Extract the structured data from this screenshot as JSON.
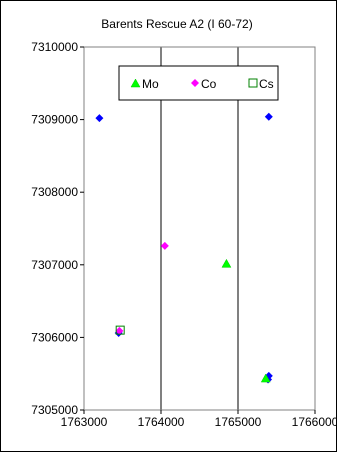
{
  "chart_data": {
    "type": "scatter",
    "title": "Barents Rescue A2 (I 60-72)",
    "xlabel": "",
    "ylabel": "",
    "xlim": [
      1763000,
      1766000
    ],
    "ylim": [
      7305000,
      7310000
    ],
    "x_ticks": [
      1763000,
      1764000,
      1765000,
      1766000
    ],
    "y_ticks": [
      7305000,
      7306000,
      7307000,
      7308000,
      7309000,
      7310000
    ],
    "x_tick_labels": [
      "1763000",
      "1764000",
      "1765000",
      "1766000"
    ],
    "y_tick_labels": [
      "7305000",
      "7306000",
      "7307000",
      "7308000",
      "7309000",
      "7310000"
    ],
    "grid": "vertical",
    "legend_position": "top-center",
    "unlabeled_points": {
      "color": "#0000ff",
      "marker": "diamond",
      "points": [
        {
          "x": 1763200,
          "y": 7309020
        },
        {
          "x": 1765400,
          "y": 7309040
        },
        {
          "x": 1763450,
          "y": 7306060
        },
        {
          "x": 1765400,
          "y": 7305470
        },
        {
          "x": 1765390,
          "y": 7305420
        }
      ]
    },
    "series": [
      {
        "name": "Mo",
        "color": "#00ff00",
        "marker": "triangle",
        "points": [
          {
            "x": 1764850,
            "y": 7307020
          },
          {
            "x": 1765360,
            "y": 7305440
          }
        ]
      },
      {
        "name": "Co",
        "color": "#ff00ff",
        "marker": "diamond",
        "points": [
          {
            "x": 1764050,
            "y": 7307260
          },
          {
            "x": 1763460,
            "y": 7306090
          }
        ]
      },
      {
        "name": "Cs",
        "color": "#008000",
        "marker": "square-open",
        "points": [
          {
            "x": 1763470,
            "y": 7306100
          }
        ]
      }
    ]
  }
}
